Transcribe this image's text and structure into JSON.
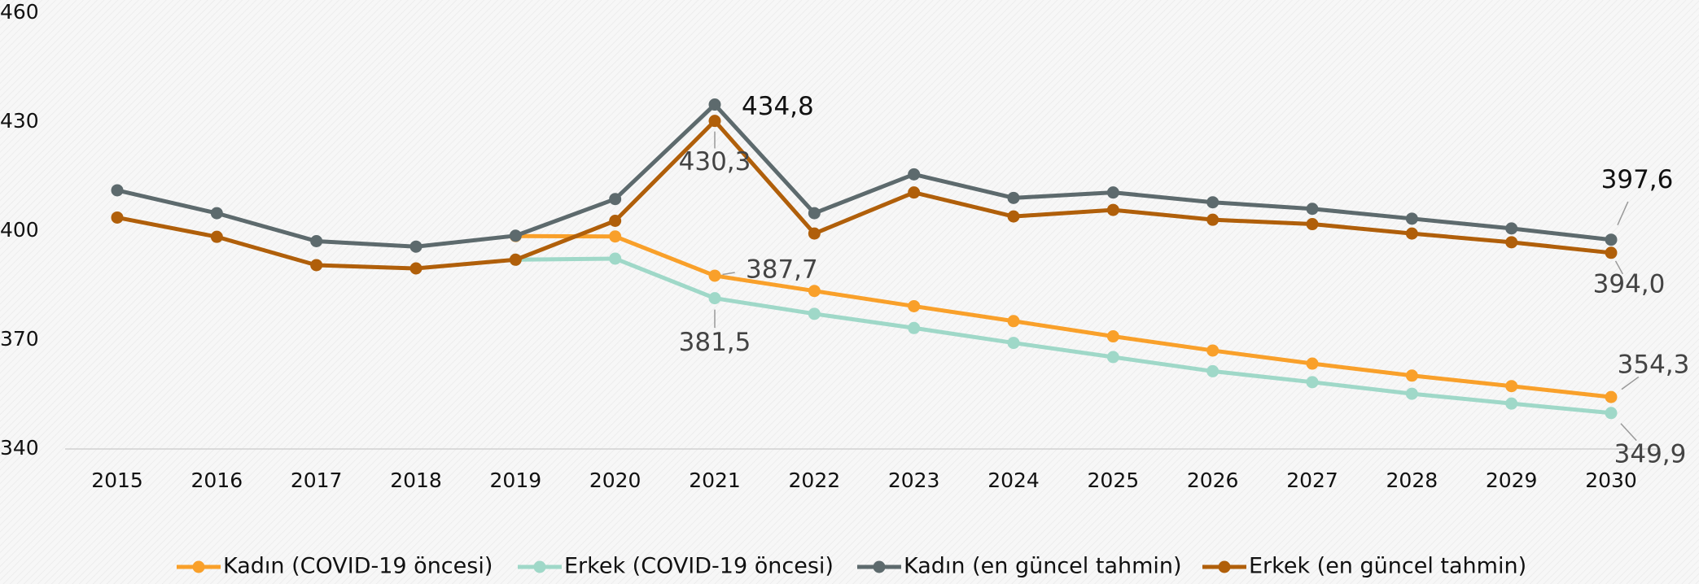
{
  "chart_data": {
    "type": "line",
    "categories": [
      "2015",
      "2016",
      "2017",
      "2018",
      "2019",
      "2020",
      "2021",
      "2022",
      "2023",
      "2024",
      "2025",
      "2026",
      "2027",
      "2028",
      "2029",
      "2030"
    ],
    "ylim": [
      340,
      460
    ],
    "yticks": [
      340,
      370,
      400,
      430,
      460
    ],
    "series": [
      {
        "name": "Kadın (COVID-19 öncesi)",
        "color": "#f9a02a",
        "values": [
          null,
          null,
          null,
          null,
          398.6,
          398.5,
          387.7,
          383.5,
          379.3,
          375.2,
          371.0,
          367.1,
          363.5,
          360.2,
          357.3,
          354.3
        ],
        "value_labels": [
          null,
          null,
          null,
          null,
          null,
          null,
          "387,7",
          null,
          null,
          null,
          null,
          null,
          null,
          null,
          null,
          "354,3"
        ]
      },
      {
        "name": "Erkek (COVID-19 öncesi)",
        "color": "#9fd8c8",
        "values": [
          null,
          null,
          null,
          null,
          392.1,
          392.4,
          381.5,
          377.2,
          373.3,
          369.2,
          365.3,
          361.4,
          358.4,
          355.2,
          352.5,
          349.9
        ],
        "value_labels": [
          null,
          null,
          null,
          null,
          null,
          null,
          "381,5",
          null,
          null,
          null,
          null,
          null,
          null,
          null,
          null,
          "349,9"
        ]
      },
      {
        "name": "Kadın (en güncel tahmin)",
        "color": "#5d6a6d",
        "values": [
          411.2,
          404.9,
          397.2,
          395.7,
          398.7,
          408.8,
          434.8,
          404.9,
          415.6,
          409.1,
          410.6,
          407.9,
          406.1,
          403.4,
          400.7,
          397.6
        ],
        "value_labels": [
          null,
          null,
          null,
          null,
          null,
          null,
          "434,8",
          null,
          null,
          null,
          null,
          null,
          null,
          null,
          null,
          "397,6"
        ]
      },
      {
        "name": "Erkek (en güncel tahmin)",
        "color": "#b05f0a",
        "values": [
          403.7,
          398.4,
          390.6,
          389.7,
          392.1,
          402.8,
          430.3,
          399.3,
          410.6,
          404.0,
          405.8,
          403.1,
          401.9,
          399.3,
          396.9,
          394.0
        ],
        "value_labels": [
          null,
          null,
          null,
          null,
          null,
          null,
          "430,3",
          null,
          null,
          null,
          null,
          null,
          null,
          null,
          null,
          "394,0"
        ]
      }
    ]
  }
}
